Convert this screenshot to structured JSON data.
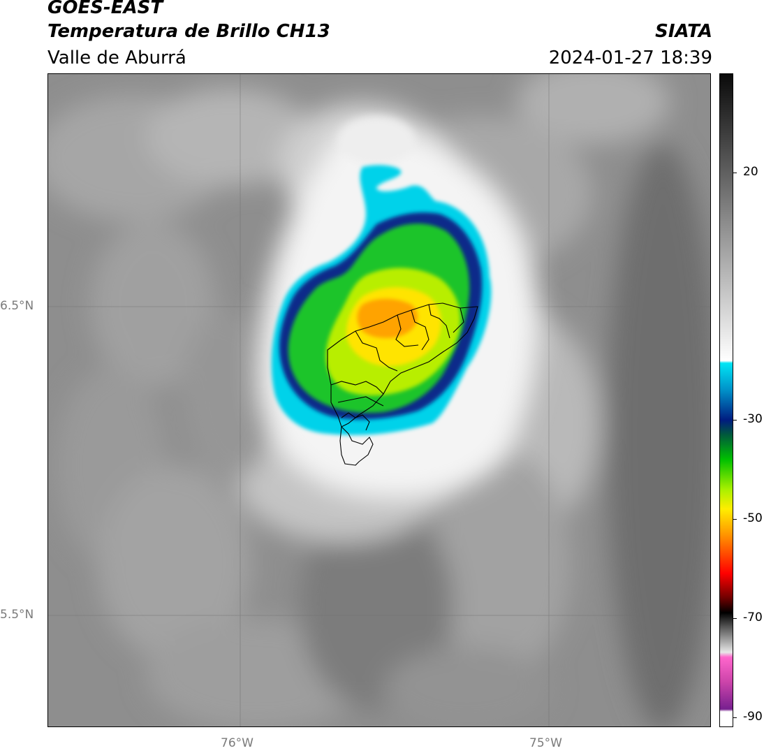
{
  "header": {
    "satellite": "GOES-EAST",
    "product": "Temperatura de Brillo CH13",
    "region": "Valle de Aburrá",
    "organization": "SIATA",
    "datetime": "2024-01-27 18:39"
  },
  "map": {
    "latitude_labels": [
      "6.5°N",
      "5.5°N"
    ],
    "longitude_labels": [
      "76°W",
      "75°W"
    ],
    "grid_lines": true,
    "base_colors": {
      "warm_background": "#8c8c8c",
      "cold_cloud_white": "#f2f2f2",
      "cyan": "#00d4e8",
      "dark_blue": "#0a1f7a",
      "green": "#1fbe2a",
      "yellow_green": "#c8f000",
      "yellow": "#ffe600",
      "orange": "#ffa000",
      "municipal_outline": "#000000"
    }
  },
  "colorbar": {
    "ticks": [
      "20",
      "-30",
      "-50",
      "-70",
      "-90"
    ],
    "tick_values": [
      20,
      -30,
      -50,
      -70,
      -90
    ],
    "value_min": -92,
    "value_max": 40,
    "stops": [
      {
        "value": 40,
        "color": "#0a0a0a"
      },
      {
        "value": 25,
        "color": "#4a4a4a"
      },
      {
        "value": 10,
        "color": "#8c8c8c"
      },
      {
        "value": -5,
        "color": "#c9c9c9"
      },
      {
        "value": -18,
        "color": "#ffffff"
      },
      {
        "value": -18.5,
        "color": "#00e5f5"
      },
      {
        "value": -24,
        "color": "#0090c8"
      },
      {
        "value": -30,
        "color": "#001c80"
      },
      {
        "value": -33,
        "color": "#005a3c"
      },
      {
        "value": -38,
        "color": "#00c000"
      },
      {
        "value": -44,
        "color": "#a8f000"
      },
      {
        "value": -48,
        "color": "#ffee00"
      },
      {
        "value": -53,
        "color": "#ff9900"
      },
      {
        "value": -61,
        "color": "#ff0000"
      },
      {
        "value": -66,
        "color": "#700000"
      },
      {
        "value": -69,
        "color": "#000000"
      },
      {
        "value": -72,
        "color": "#5a5a5a"
      },
      {
        "value": -77,
        "color": "#e8e8e8"
      },
      {
        "value": -78,
        "color": "#ff66cc"
      },
      {
        "value": -83,
        "color": "#cc44aa"
      },
      {
        "value": -88.5,
        "color": "#77208f"
      },
      {
        "value": -89,
        "color": "#ffffff"
      },
      {
        "value": -92,
        "color": "#ffffff"
      }
    ]
  }
}
